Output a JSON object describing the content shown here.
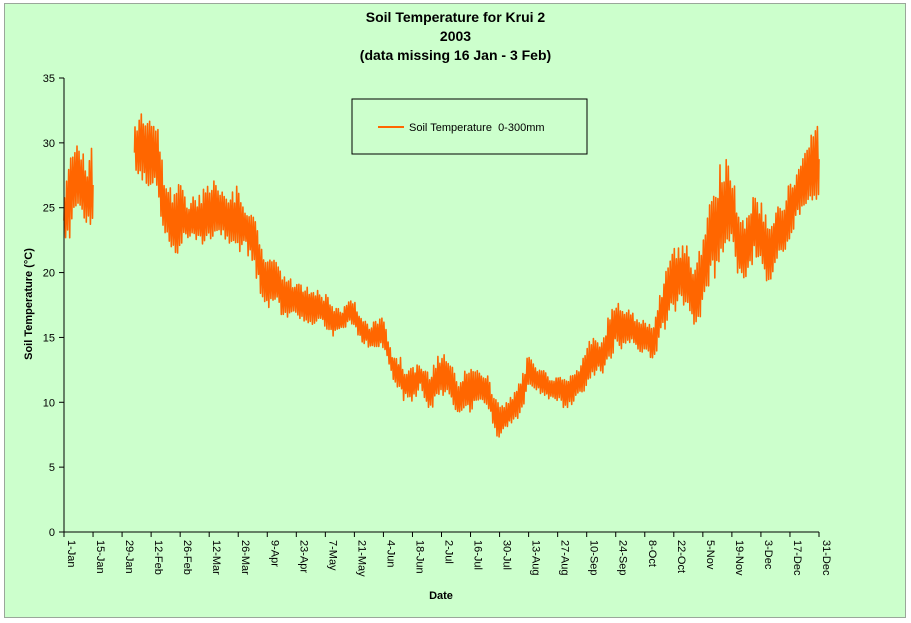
{
  "chart_data": {
    "type": "line",
    "title_lines": [
      "Soil Temperature for Krui 2",
      "2003",
      "(data missing 16 Jan - 3 Feb)"
    ],
    "xlabel": "Date",
    "ylabel": "Soil Temperature (°C)",
    "ylim": [
      0,
      35
    ],
    "yticks": [
      "0",
      "5",
      "10",
      "15",
      "20",
      "25",
      "30",
      "35"
    ],
    "xlim": [
      "1-Jan",
      "31-Dec"
    ],
    "xtick_labels": [
      "1-Jan",
      "15-Jan",
      "29-Jan",
      "12-Feb",
      "26-Feb",
      "12-Mar",
      "26-Mar",
      "9-Apr",
      "23-Apr",
      "7-May",
      "21-May",
      "4-Jun",
      "18-Jun",
      "2-Jul",
      "16-Jul",
      "30-Jul",
      "13-Aug",
      "27-Aug",
      "10-Sep",
      "24-Sep",
      "8-Oct",
      "22-Oct",
      "5-Nov",
      "19-Nov",
      "3-Dec",
      "17-Dec",
      "31-Dec"
    ],
    "gap": [
      "16-Jan",
      "3-Feb"
    ],
    "grid": false,
    "legend_position": "top-center",
    "series": [
      {
        "name": "Soil Temperature  0-300mm",
        "color": "#ff6600",
        "points": [
          {
            "date": "1-Jan",
            "min": 21,
            "max": 27
          },
          {
            "date": "3-Jan",
            "min": 22.5,
            "max": 28.5
          },
          {
            "date": "6-Jan",
            "min": 24,
            "max": 30.5
          },
          {
            "date": "9-Jan",
            "min": 24.5,
            "max": 29.5
          },
          {
            "date": "12-Jan",
            "min": 23.5,
            "max": 28.5
          },
          {
            "date": "15-Jan",
            "min": 23,
            "max": 30.5
          },
          {
            "date": "4-Feb",
            "min": 27,
            "max": 31.5
          },
          {
            "date": "7-Feb",
            "min": 27,
            "max": 33
          },
          {
            "date": "10-Feb",
            "min": 26,
            "max": 32
          },
          {
            "date": "12-Feb",
            "min": 26.5,
            "max": 32.5
          },
          {
            "date": "15-Feb",
            "min": 25.5,
            "max": 31.5
          },
          {
            "date": "18-Feb",
            "min": 22.5,
            "max": 28
          },
          {
            "date": "21-Feb",
            "min": 22,
            "max": 26.5
          },
          {
            "date": "24-Feb",
            "min": 20.5,
            "max": 26
          },
          {
            "date": "26-Feb",
            "min": 21.5,
            "max": 27.5
          },
          {
            "date": "1-Mar",
            "min": 22.5,
            "max": 25.5
          },
          {
            "date": "5-Mar",
            "min": 22,
            "max": 26
          },
          {
            "date": "9-Mar",
            "min": 21.5,
            "max": 26.5
          },
          {
            "date": "12-Mar",
            "min": 22,
            "max": 27
          },
          {
            "date": "16-Mar",
            "min": 22.5,
            "max": 27
          },
          {
            "date": "20-Mar",
            "min": 22,
            "max": 26.5
          },
          {
            "date": "24-Mar",
            "min": 22,
            "max": 26
          },
          {
            "date": "26-Mar",
            "min": 21.5,
            "max": 27
          },
          {
            "date": "30-Mar",
            "min": 21.5,
            "max": 25
          },
          {
            "date": "3-Apr",
            "min": 20.5,
            "max": 24.5
          },
          {
            "date": "6-Apr",
            "min": 17.5,
            "max": 22.5
          },
          {
            "date": "9-Apr",
            "min": 17,
            "max": 21.5
          },
          {
            "date": "13-Apr",
            "min": 17.5,
            "max": 21
          },
          {
            "date": "16-Apr",
            "min": 16.5,
            "max": 20
          },
          {
            "date": "20-Apr",
            "min": 16.5,
            "max": 19.5
          },
          {
            "date": "23-Apr",
            "min": 16.5,
            "max": 19.5
          },
          {
            "date": "27-Apr",
            "min": 16,
            "max": 19
          },
          {
            "date": "1-May",
            "min": 16,
            "max": 19
          },
          {
            "date": "4-May",
            "min": 16,
            "max": 18.5
          },
          {
            "date": "7-May",
            "min": 15.5,
            "max": 18.5
          },
          {
            "date": "11-May",
            "min": 15,
            "max": 17.5
          },
          {
            "date": "15-May",
            "min": 15.5,
            "max": 17
          },
          {
            "date": "18-May",
            "min": 16,
            "max": 18
          },
          {
            "date": "21-May",
            "min": 15.5,
            "max": 18
          },
          {
            "date": "25-May",
            "min": 14.5,
            "max": 16.5
          },
          {
            "date": "29-May",
            "min": 14,
            "max": 16
          },
          {
            "date": "1-Jun",
            "min": 14,
            "max": 16.5
          },
          {
            "date": "4-Jun",
            "min": 14,
            "max": 16.5
          },
          {
            "date": "8-Jun",
            "min": 12,
            "max": 14
          },
          {
            "date": "12-Jun",
            "min": 10.5,
            "max": 13.5
          },
          {
            "date": "15-Jun",
            "min": 10,
            "max": 12.5
          },
          {
            "date": "18-Jun",
            "min": 10,
            "max": 13
          },
          {
            "date": "22-Jun",
            "min": 11,
            "max": 13
          },
          {
            "date": "26-Jun",
            "min": 9,
            "max": 12.5
          },
          {
            "date": "29-Jun",
            "min": 10,
            "max": 13
          },
          {
            "date": "2-Jul",
            "min": 10.5,
            "max": 14
          },
          {
            "date": "6-Jul",
            "min": 10,
            "max": 13.5
          },
          {
            "date": "10-Jul",
            "min": 8.5,
            "max": 11.5
          },
          {
            "date": "13-Jul",
            "min": 9.5,
            "max": 12.5
          },
          {
            "date": "16-Jul",
            "min": 9,
            "max": 12.5
          },
          {
            "date": "20-Jul",
            "min": 10,
            "max": 12.5
          },
          {
            "date": "24-Jul",
            "min": 9.5,
            "max": 12.5
          },
          {
            "date": "27-Jul",
            "min": 8,
            "max": 10.5
          },
          {
            "date": "30-Jul",
            "min": 7,
            "max": 10
          },
          {
            "date": "3-Aug",
            "min": 8,
            "max": 10
          },
          {
            "date": "7-Aug",
            "min": 8.5,
            "max": 11.5
          },
          {
            "date": "10-Aug",
            "min": 9.5,
            "max": 12
          },
          {
            "date": "13-Aug",
            "min": 11,
            "max": 14
          },
          {
            "date": "17-Aug",
            "min": 10.5,
            "max": 13
          },
          {
            "date": "21-Aug",
            "min": 10.5,
            "max": 12.5
          },
          {
            "date": "24-Aug",
            "min": 10,
            "max": 12
          },
          {
            "date": "27-Aug",
            "min": 10,
            "max": 12.5
          },
          {
            "date": "31-Aug",
            "min": 9.5,
            "max": 12
          },
          {
            "date": "4-Sep",
            "min": 10,
            "max": 12.5
          },
          {
            "date": "7-Sep",
            "min": 10.5,
            "max": 13
          },
          {
            "date": "10-Sep",
            "min": 11,
            "max": 14.5
          },
          {
            "date": "14-Sep",
            "min": 12,
            "max": 15
          },
          {
            "date": "18-Sep",
            "min": 12,
            "max": 15
          },
          {
            "date": "21-Sep",
            "min": 13,
            "max": 17
          },
          {
            "date": "24-Sep",
            "min": 14,
            "max": 18
          },
          {
            "date": "28-Sep",
            "min": 14,
            "max": 17.5
          },
          {
            "date": "2-Oct",
            "min": 14.5,
            "max": 17
          },
          {
            "date": "5-Oct",
            "min": 13.5,
            "max": 16.5
          },
          {
            "date": "8-Oct",
            "min": 14,
            "max": 16.5
          },
          {
            "date": "12-Oct",
            "min": 13,
            "max": 16
          },
          {
            "date": "16-Oct",
            "min": 15,
            "max": 19
          },
          {
            "date": "19-Oct",
            "min": 16,
            "max": 21
          },
          {
            "date": "22-Oct",
            "min": 17,
            "max": 22
          },
          {
            "date": "26-Oct",
            "min": 17.5,
            "max": 22.5
          },
          {
            "date": "30-Oct",
            "min": 16.5,
            "max": 21.5
          },
          {
            "date": "2-Nov",
            "min": 15,
            "max": 21
          },
          {
            "date": "5-Nov",
            "min": 17,
            "max": 23
          },
          {
            "date": "9-Nov",
            "min": 19,
            "max": 26
          },
          {
            "date": "13-Nov",
            "min": 20,
            "max": 28
          },
          {
            "date": "16-Nov",
            "min": 21,
            "max": 29
          },
          {
            "date": "19-Nov",
            "min": 21.5,
            "max": 28.5
          },
          {
            "date": "23-Nov",
            "min": 19,
            "max": 24
          },
          {
            "date": "27-Nov",
            "min": 19.5,
            "max": 25
          },
          {
            "date": "30-Nov",
            "min": 21,
            "max": 26.5
          },
          {
            "date": "3-Dec",
            "min": 20,
            "max": 25.5
          },
          {
            "date": "7-Dec",
            "min": 18.5,
            "max": 24
          },
          {
            "date": "11-Dec",
            "min": 21,
            "max": 25.5
          },
          {
            "date": "14-Dec",
            "min": 21,
            "max": 25
          },
          {
            "date": "17-Dec",
            "min": 22.5,
            "max": 27
          },
          {
            "date": "21-Dec",
            "min": 24,
            "max": 28.5
          },
          {
            "date": "25-Dec",
            "min": 25,
            "max": 30
          },
          {
            "date": "28-Dec",
            "min": 25,
            "max": 31.5
          },
          {
            "date": "31-Dec",
            "min": 25.5,
            "max": 32
          }
        ]
      }
    ]
  }
}
